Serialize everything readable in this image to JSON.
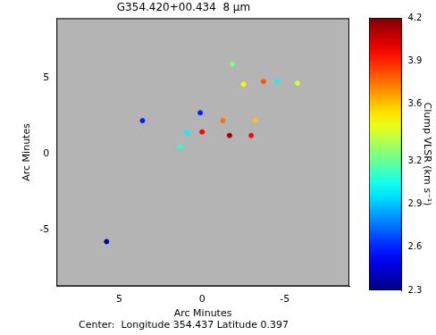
{
  "chart_data": {
    "type": "scatter",
    "title": "G354.420+00.434  8 μm",
    "subtitle": "Center:  Longitude 354.437 Latitude 0.397",
    "x_label": "Arc Minutes",
    "y_label": "Arc Minutes",
    "x": [
      -1.83,
      -2.51,
      -3.71,
      -4.51,
      -5.77,
      3.6,
      0.11,
      -1.26,
      -3.2,
      0.91,
      0.0,
      -1.66,
      -2.97,
      1.31,
      5.77
    ],
    "values": [
      5.89,
      4.57,
      4.74,
      4.74,
      4.63,
      2.17,
      2.69,
      2.17,
      2.17,
      1.37,
      1.43,
      1.2,
      1.2,
      0.46,
      -5.77
    ],
    "v_lsr": [
      3.25,
      3.5,
      3.8,
      3.0,
      3.4,
      2.6,
      2.6,
      3.75,
      3.6,
      3.0,
      3.95,
      4.15,
      3.95,
      3.1,
      2.35
    ],
    "xlim": [
      8.8,
      -8.9
    ],
    "ylim": [
      -8.7,
      8.9
    ],
    "xticks": [
      5,
      0,
      -5
    ],
    "yticks": [
      -5,
      0,
      5
    ],
    "grid": false,
    "marker": "circle",
    "colorbar": {
      "label": "Clump VLSR (km s⁻¹)",
      "range": [
        2.3,
        4.2
      ],
      "ticks": [
        2.3,
        2.6,
        2.9,
        3.2,
        3.6,
        3.9,
        4.2
      ]
    }
  }
}
